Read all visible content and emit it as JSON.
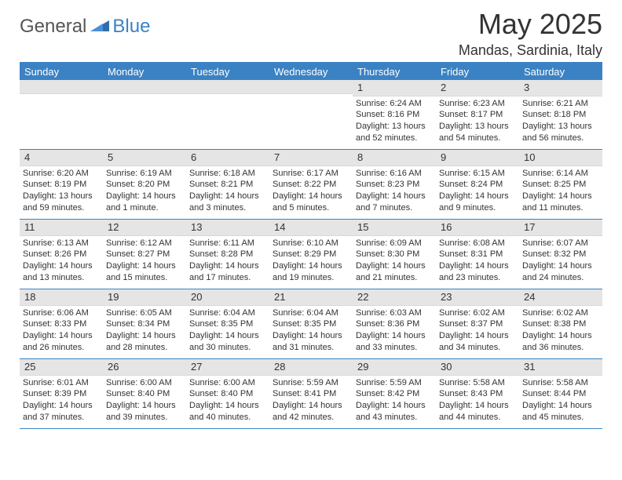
{
  "logo": {
    "general": "General",
    "blue": "Blue"
  },
  "title": "May 2025",
  "location": "Mandas, Sardinia, Italy",
  "colors": {
    "accent": "#3b82c4",
    "daynum_bg": "#e5e5e5",
    "text": "#333333",
    "background": "#ffffff"
  },
  "dow": [
    "Sunday",
    "Monday",
    "Tuesday",
    "Wednesday",
    "Thursday",
    "Friday",
    "Saturday"
  ],
  "weeks": [
    [
      {
        "n": "",
        "sr": "",
        "ss": "",
        "dl": ""
      },
      {
        "n": "",
        "sr": "",
        "ss": "",
        "dl": ""
      },
      {
        "n": "",
        "sr": "",
        "ss": "",
        "dl": ""
      },
      {
        "n": "",
        "sr": "",
        "ss": "",
        "dl": ""
      },
      {
        "n": "1",
        "sr": "Sunrise: 6:24 AM",
        "ss": "Sunset: 8:16 PM",
        "dl": "Daylight: 13 hours and 52 minutes."
      },
      {
        "n": "2",
        "sr": "Sunrise: 6:23 AM",
        "ss": "Sunset: 8:17 PM",
        "dl": "Daylight: 13 hours and 54 minutes."
      },
      {
        "n": "3",
        "sr": "Sunrise: 6:21 AM",
        "ss": "Sunset: 8:18 PM",
        "dl": "Daylight: 13 hours and 56 minutes."
      }
    ],
    [
      {
        "n": "4",
        "sr": "Sunrise: 6:20 AM",
        "ss": "Sunset: 8:19 PM",
        "dl": "Daylight: 13 hours and 59 minutes."
      },
      {
        "n": "5",
        "sr": "Sunrise: 6:19 AM",
        "ss": "Sunset: 8:20 PM",
        "dl": "Daylight: 14 hours and 1 minute."
      },
      {
        "n": "6",
        "sr": "Sunrise: 6:18 AM",
        "ss": "Sunset: 8:21 PM",
        "dl": "Daylight: 14 hours and 3 minutes."
      },
      {
        "n": "7",
        "sr": "Sunrise: 6:17 AM",
        "ss": "Sunset: 8:22 PM",
        "dl": "Daylight: 14 hours and 5 minutes."
      },
      {
        "n": "8",
        "sr": "Sunrise: 6:16 AM",
        "ss": "Sunset: 8:23 PM",
        "dl": "Daylight: 14 hours and 7 minutes."
      },
      {
        "n": "9",
        "sr": "Sunrise: 6:15 AM",
        "ss": "Sunset: 8:24 PM",
        "dl": "Daylight: 14 hours and 9 minutes."
      },
      {
        "n": "10",
        "sr": "Sunrise: 6:14 AM",
        "ss": "Sunset: 8:25 PM",
        "dl": "Daylight: 14 hours and 11 minutes."
      }
    ],
    [
      {
        "n": "11",
        "sr": "Sunrise: 6:13 AM",
        "ss": "Sunset: 8:26 PM",
        "dl": "Daylight: 14 hours and 13 minutes."
      },
      {
        "n": "12",
        "sr": "Sunrise: 6:12 AM",
        "ss": "Sunset: 8:27 PM",
        "dl": "Daylight: 14 hours and 15 minutes."
      },
      {
        "n": "13",
        "sr": "Sunrise: 6:11 AM",
        "ss": "Sunset: 8:28 PM",
        "dl": "Daylight: 14 hours and 17 minutes."
      },
      {
        "n": "14",
        "sr": "Sunrise: 6:10 AM",
        "ss": "Sunset: 8:29 PM",
        "dl": "Daylight: 14 hours and 19 minutes."
      },
      {
        "n": "15",
        "sr": "Sunrise: 6:09 AM",
        "ss": "Sunset: 8:30 PM",
        "dl": "Daylight: 14 hours and 21 minutes."
      },
      {
        "n": "16",
        "sr": "Sunrise: 6:08 AM",
        "ss": "Sunset: 8:31 PM",
        "dl": "Daylight: 14 hours and 23 minutes."
      },
      {
        "n": "17",
        "sr": "Sunrise: 6:07 AM",
        "ss": "Sunset: 8:32 PM",
        "dl": "Daylight: 14 hours and 24 minutes."
      }
    ],
    [
      {
        "n": "18",
        "sr": "Sunrise: 6:06 AM",
        "ss": "Sunset: 8:33 PM",
        "dl": "Daylight: 14 hours and 26 minutes."
      },
      {
        "n": "19",
        "sr": "Sunrise: 6:05 AM",
        "ss": "Sunset: 8:34 PM",
        "dl": "Daylight: 14 hours and 28 minutes."
      },
      {
        "n": "20",
        "sr": "Sunrise: 6:04 AM",
        "ss": "Sunset: 8:35 PM",
        "dl": "Daylight: 14 hours and 30 minutes."
      },
      {
        "n": "21",
        "sr": "Sunrise: 6:04 AM",
        "ss": "Sunset: 8:35 PM",
        "dl": "Daylight: 14 hours and 31 minutes."
      },
      {
        "n": "22",
        "sr": "Sunrise: 6:03 AM",
        "ss": "Sunset: 8:36 PM",
        "dl": "Daylight: 14 hours and 33 minutes."
      },
      {
        "n": "23",
        "sr": "Sunrise: 6:02 AM",
        "ss": "Sunset: 8:37 PM",
        "dl": "Daylight: 14 hours and 34 minutes."
      },
      {
        "n": "24",
        "sr": "Sunrise: 6:02 AM",
        "ss": "Sunset: 8:38 PM",
        "dl": "Daylight: 14 hours and 36 minutes."
      }
    ],
    [
      {
        "n": "25",
        "sr": "Sunrise: 6:01 AM",
        "ss": "Sunset: 8:39 PM",
        "dl": "Daylight: 14 hours and 37 minutes."
      },
      {
        "n": "26",
        "sr": "Sunrise: 6:00 AM",
        "ss": "Sunset: 8:40 PM",
        "dl": "Daylight: 14 hours and 39 minutes."
      },
      {
        "n": "27",
        "sr": "Sunrise: 6:00 AM",
        "ss": "Sunset: 8:40 PM",
        "dl": "Daylight: 14 hours and 40 minutes."
      },
      {
        "n": "28",
        "sr": "Sunrise: 5:59 AM",
        "ss": "Sunset: 8:41 PM",
        "dl": "Daylight: 14 hours and 42 minutes."
      },
      {
        "n": "29",
        "sr": "Sunrise: 5:59 AM",
        "ss": "Sunset: 8:42 PM",
        "dl": "Daylight: 14 hours and 43 minutes."
      },
      {
        "n": "30",
        "sr": "Sunrise: 5:58 AM",
        "ss": "Sunset: 8:43 PM",
        "dl": "Daylight: 14 hours and 44 minutes."
      },
      {
        "n": "31",
        "sr": "Sunrise: 5:58 AM",
        "ss": "Sunset: 8:44 PM",
        "dl": "Daylight: 14 hours and 45 minutes."
      }
    ]
  ]
}
